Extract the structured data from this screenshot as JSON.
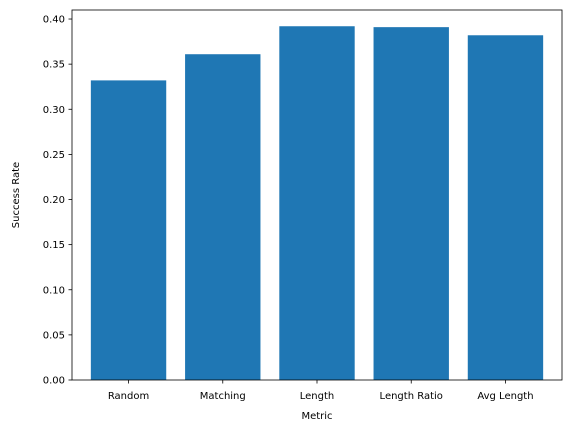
{
  "chart_data": {
    "type": "bar",
    "title": "",
    "xlabel": "Metric",
    "ylabel": "Success Rate",
    "categories": [
      "Random",
      "Matching",
      "Length",
      "Length Ratio",
      "Avg Length"
    ],
    "values": [
      0.332,
      0.361,
      0.392,
      0.391,
      0.382
    ],
    "ylim": [
      0.0,
      0.41
    ],
    "yticks": [
      "0.00",
      "0.05",
      "0.10",
      "0.15",
      "0.20",
      "0.25",
      "0.30",
      "0.35",
      "0.40"
    ],
    "bar_color": "#1f77b4",
    "grid": false
  }
}
